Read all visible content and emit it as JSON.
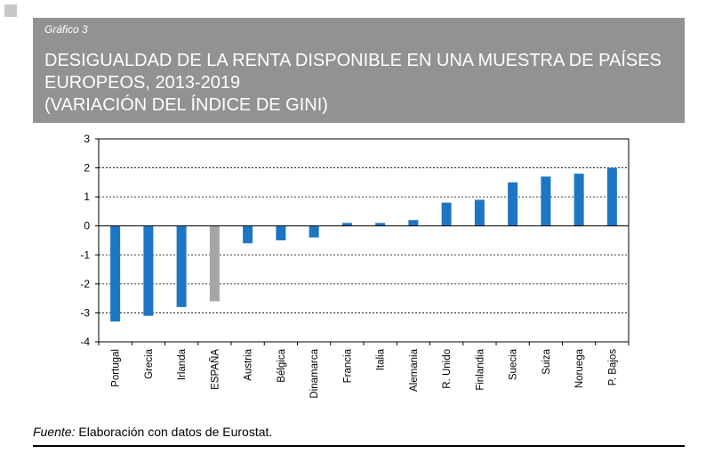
{
  "figure_label": "Gráfico 3",
  "title_lines": [
    "DESIGUALDAD DE LA RENTA DISPONIBLE EN UNA MUESTRA DE PAÍSES",
    "EUROPEOS, 2013-2019",
    "(VARIACIÓN DEL ÍNDICE DE GINI)"
  ],
  "source_label": "Fuente:",
  "source_text": " Elaboración con datos de Eurostat.",
  "colors": {
    "bar": "#1d76c4",
    "highlight_bar": "#a6a6a6",
    "header": "#929292"
  },
  "chart_data": {
    "type": "bar",
    "categories": [
      "Portugal",
      "Grecia",
      "Irlanda",
      "ESPAÑA",
      "Austria",
      "Bélgica",
      "Dinamarca",
      "Francia",
      "Italia",
      "Alemania",
      "R. Unido",
      "Finlandia",
      "Suecia",
      "Suiza",
      "Noruega",
      "P. Bajos"
    ],
    "values": [
      -3.3,
      -3.1,
      -2.8,
      -2.6,
      -0.6,
      -0.5,
      -0.4,
      0.1,
      0.1,
      0.2,
      0.8,
      0.9,
      1.5,
      1.7,
      1.8,
      2.0
    ],
    "highlight_category": "ESPAÑA",
    "ylim": [
      -4,
      3
    ],
    "yticks": [
      3,
      2,
      1,
      0,
      -1,
      -2,
      -3,
      -4
    ],
    "grid": "horizontal dashed",
    "legend": "none"
  }
}
